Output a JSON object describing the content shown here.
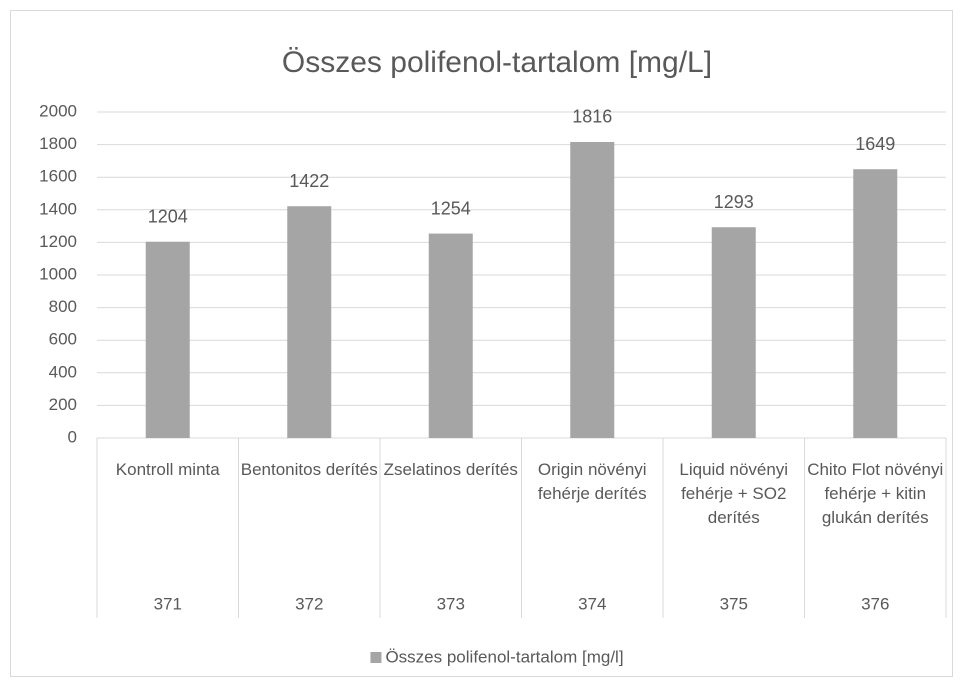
{
  "chart_data": {
    "type": "bar",
    "title": "Összes polifenol-tartalom [mg/L]",
    "categories": [
      "Kontroll minta",
      "Bentonitos derítés",
      "Zselatinos derítés",
      "Origin növényi fehérje derítés",
      "Liquid növényi fehérje + SO2 derítés",
      "Chito Flot növényi fehérje + kitin glukán derítés"
    ],
    "groups": [
      "371",
      "372",
      "373",
      "374",
      "375",
      "376"
    ],
    "series": [
      {
        "name": "Összes polifenol-tartalom [mg/l]",
        "color": "#a5a5a5",
        "values": [
          1204,
          1422,
          1254,
          1816,
          1293,
          1649
        ]
      }
    ],
    "ylim": [
      0,
      2000
    ],
    "yticks": [
      0,
      200,
      400,
      600,
      800,
      1000,
      1200,
      1400,
      1600,
      1800,
      2000
    ],
    "grid": true,
    "legend": "bottom"
  }
}
